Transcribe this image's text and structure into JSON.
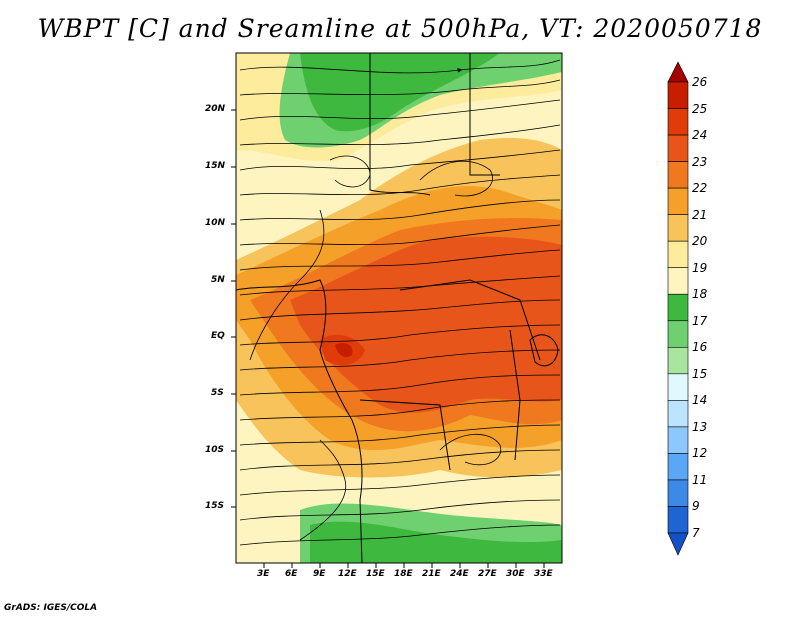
{
  "title": "WBPT [C] and Sreamline at 500hPa, VT: 2020050718",
  "credit": "GrADS: IGES/COLA",
  "map": {
    "lat_ticks": [
      "20N",
      "15N",
      "10N",
      "5N",
      "EQ",
      "5S",
      "10S",
      "15S"
    ],
    "lon_ticks": [
      "3E",
      "6E",
      "9E",
      "12E",
      "15E",
      "18E",
      "21E",
      "24E",
      "27E",
      "30E",
      "33E"
    ]
  },
  "colorbar": {
    "levels": [
      "26",
      "25",
      "24",
      "23",
      "22",
      "21",
      "20",
      "19",
      "18",
      "17",
      "16",
      "15",
      "14",
      "13",
      "12",
      "11",
      "9",
      "7"
    ],
    "colors": [
      "#a50000",
      "#c81e00",
      "#e03c0a",
      "#e8551a",
      "#f0781e",
      "#f5a028",
      "#f8c35a",
      "#fcec9c",
      "#fdf4c0",
      "#3fb83f",
      "#6fd06f",
      "#a8e6a0",
      "#e0f8ff",
      "#bde4ff",
      "#8cc8ff",
      "#5aa8f5",
      "#3c8ae6",
      "#1e64d2",
      "#1450c8"
    ]
  }
}
